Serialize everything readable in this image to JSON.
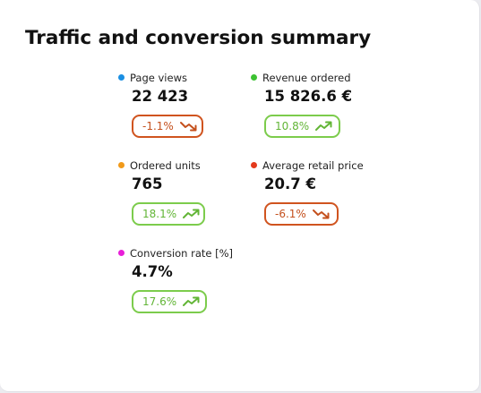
{
  "title": "Traffic and conversion summary",
  "metrics": [
    {
      "label": "Page views",
      "value": "22 423",
      "change": "-1.1%",
      "trend": "down",
      "dot_color": "#1a8fe3"
    },
    {
      "label": "Revenue ordered",
      "value": "15 826.6 €",
      "change": "10.8%",
      "trend": "up",
      "dot_color": "#3cc232"
    },
    {
      "label": "Ordered units",
      "value": "765",
      "change": "18.1%",
      "trend": "up",
      "dot_color": "#f19a1a"
    },
    {
      "label": "Average retail price",
      "value": "20.7 €",
      "change": "-6.1%",
      "trend": "down",
      "dot_color": "#e33a1c"
    },
    {
      "label": "Conversion rate [%]",
      "value": "4.7%",
      "change": "17.6%",
      "trend": "up",
      "dot_color": "#e81ed8"
    }
  ],
  "colors": {
    "positive": "#62b536",
    "negative": "#c4501d"
  },
  "icons": {
    "up": "trend-up-icon",
    "down": "trend-down-icon"
  }
}
